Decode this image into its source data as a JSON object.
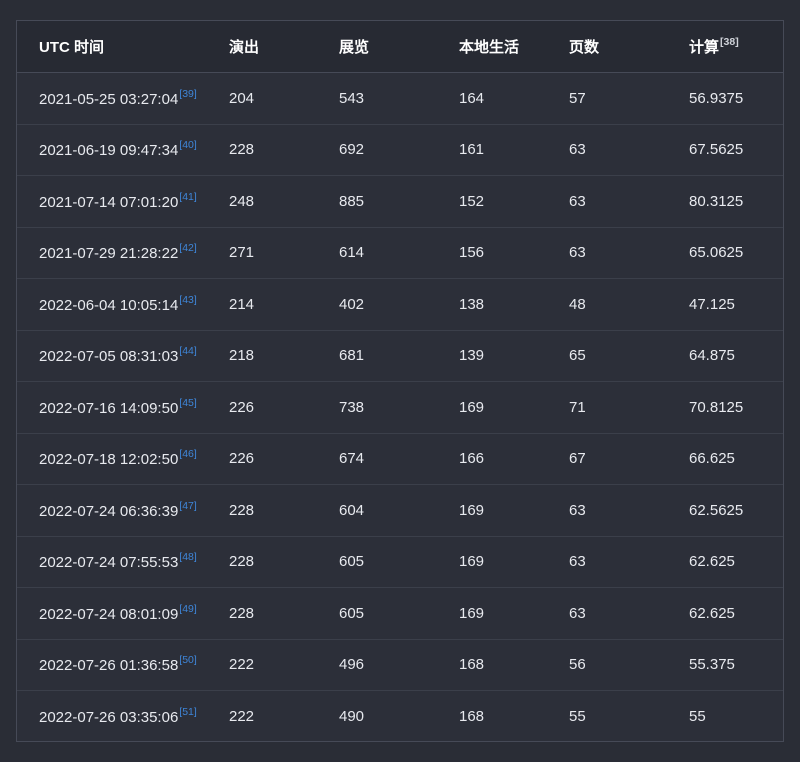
{
  "colors": {
    "page_bg": "#2a2d36",
    "table_bg": "#2c2f39",
    "header_bg": "#272a33",
    "row_border": "#3b3f4a",
    "outer_border": "#464a57",
    "text": "#e8eaef",
    "header_text": "#ffffff",
    "link": "#3e85d8",
    "header_ref": "#cfd2d9"
  },
  "table": {
    "columns": [
      {
        "key": "utc",
        "label": "UTC 时间"
      },
      {
        "key": "perform",
        "label": "演出"
      },
      {
        "key": "exhibit",
        "label": "展览"
      },
      {
        "key": "local_life",
        "label": "本地生活"
      },
      {
        "key": "pages",
        "label": "页数"
      },
      {
        "key": "calc",
        "label": "计算",
        "ref": "[38]"
      }
    ],
    "rows": [
      {
        "utc": "2021-05-25 03:27:04",
        "ref": "[39]",
        "perform": "204",
        "exhibit": "543",
        "local_life": "164",
        "pages": "57",
        "calc": "56.9375"
      },
      {
        "utc": "2021-06-19 09:47:34",
        "ref": "[40]",
        "perform": "228",
        "exhibit": "692",
        "local_life": "161",
        "pages": "63",
        "calc": "67.5625"
      },
      {
        "utc": "2021-07-14 07:01:20",
        "ref": "[41]",
        "perform": "248",
        "exhibit": "885",
        "local_life": "152",
        "pages": "63",
        "calc": "80.3125"
      },
      {
        "utc": "2021-07-29 21:28:22",
        "ref": "[42]",
        "perform": "271",
        "exhibit": "614",
        "local_life": "156",
        "pages": "63",
        "calc": "65.0625"
      },
      {
        "utc": "2022-06-04 10:05:14",
        "ref": "[43]",
        "perform": "214",
        "exhibit": "402",
        "local_life": "138",
        "pages": "48",
        "calc": "47.125"
      },
      {
        "utc": "2022-07-05 08:31:03",
        "ref": "[44]",
        "perform": "218",
        "exhibit": "681",
        "local_life": "139",
        "pages": "65",
        "calc": "64.875"
      },
      {
        "utc": "2022-07-16 14:09:50",
        "ref": "[45]",
        "perform": "226",
        "exhibit": "738",
        "local_life": "169",
        "pages": "71",
        "calc": "70.8125"
      },
      {
        "utc": "2022-07-18 12:02:50",
        "ref": "[46]",
        "perform": "226",
        "exhibit": "674",
        "local_life": "166",
        "pages": "67",
        "calc": "66.625"
      },
      {
        "utc": "2022-07-24 06:36:39",
        "ref": "[47]",
        "perform": "228",
        "exhibit": "604",
        "local_life": "169",
        "pages": "63",
        "calc": "62.5625"
      },
      {
        "utc": "2022-07-24 07:55:53",
        "ref": "[48]",
        "perform": "228",
        "exhibit": "605",
        "local_life": "169",
        "pages": "63",
        "calc": "62.625"
      },
      {
        "utc": "2022-07-24 08:01:09",
        "ref": "[49]",
        "perform": "228",
        "exhibit": "605",
        "local_life": "169",
        "pages": "63",
        "calc": "62.625"
      },
      {
        "utc": "2022-07-26 01:36:58",
        "ref": "[50]",
        "perform": "222",
        "exhibit": "496",
        "local_life": "168",
        "pages": "56",
        "calc": "55.375"
      },
      {
        "utc": "2022-07-26 03:35:06",
        "ref": "[51]",
        "perform": "222",
        "exhibit": "490",
        "local_life": "168",
        "pages": "55",
        "calc": "55"
      }
    ]
  }
}
